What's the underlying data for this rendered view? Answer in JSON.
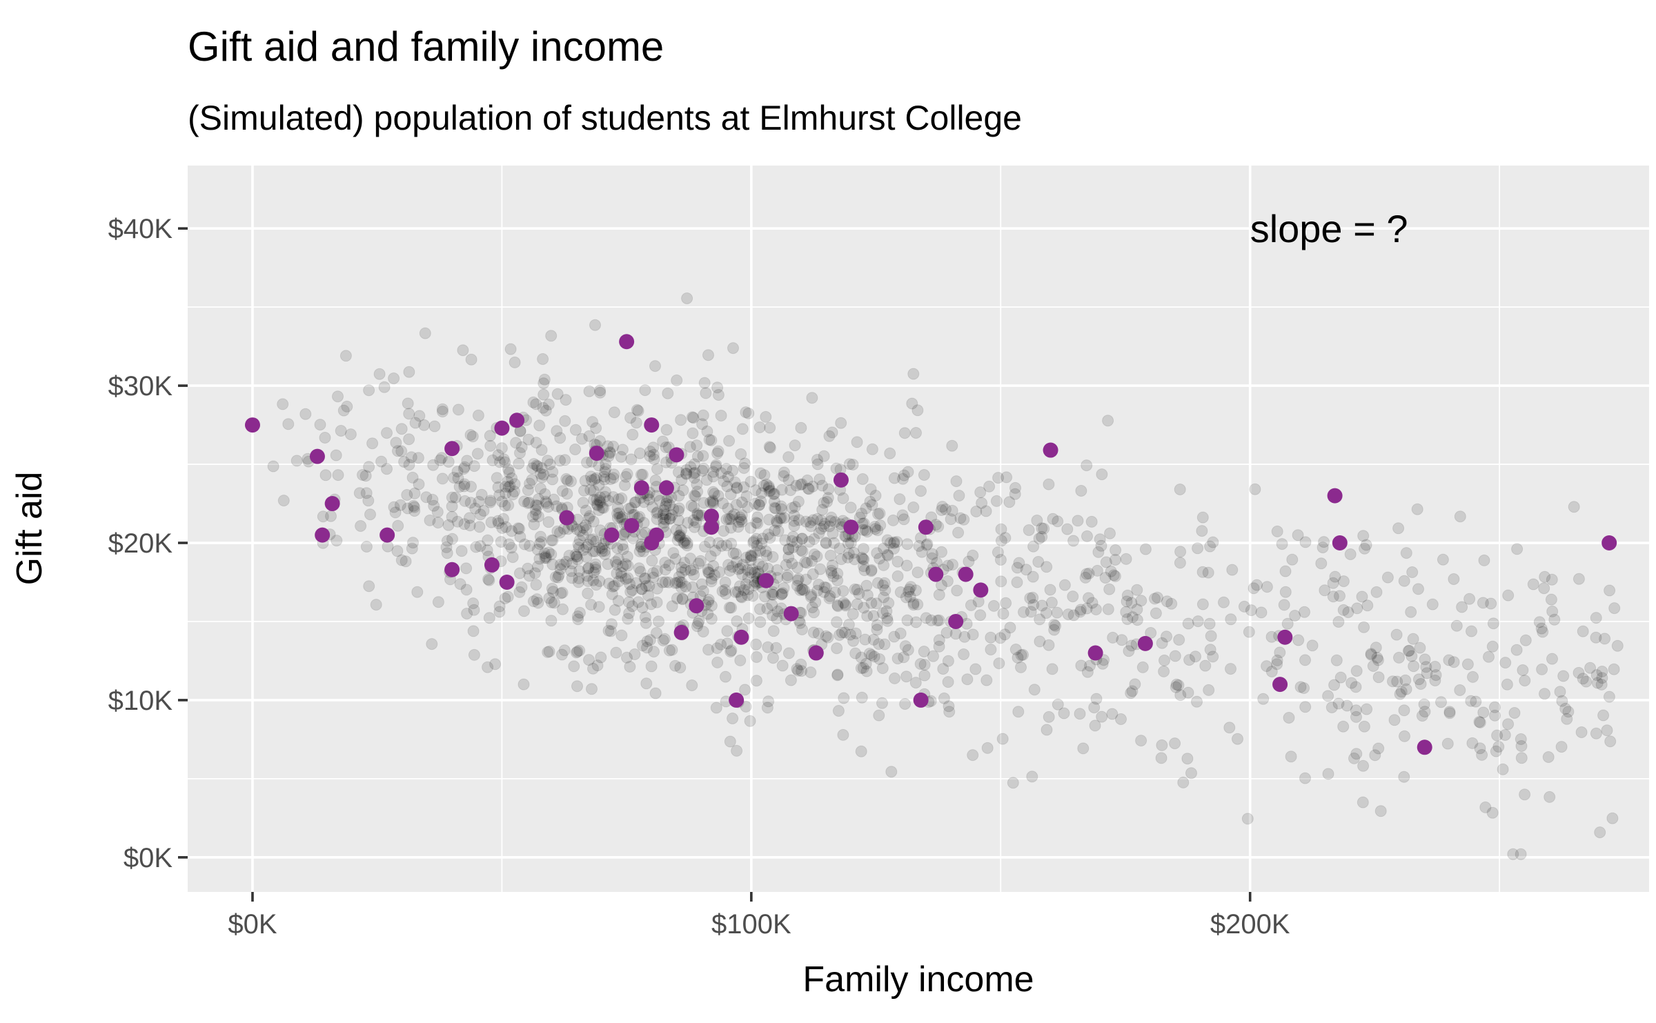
{
  "chart_data": {
    "type": "scatter",
    "title": "Gift aid and family income",
    "subtitle": "(Simulated) population of students at Elmhurst College",
    "xlabel": "Family income",
    "ylabel": "Gift aid",
    "xlim": [
      -13000,
      280000
    ],
    "ylim": [
      -2200,
      44000
    ],
    "x_ticks": [
      {
        "value": 0,
        "label": "$0K"
      },
      {
        "value": 100000,
        "label": "$100K"
      },
      {
        "value": 200000,
        "label": "$200K"
      }
    ],
    "y_ticks": [
      {
        "value": 0,
        "label": "$0K"
      },
      {
        "value": 10000,
        "label": "$10K"
      },
      {
        "value": 20000,
        "label": "$20K"
      },
      {
        "value": 30000,
        "label": "$30K"
      },
      {
        "value": 40000,
        "label": "$40K"
      }
    ],
    "x_minor_gridlines": [
      50000,
      150000,
      250000
    ],
    "y_minor_gridlines": [
      5000,
      15000,
      25000,
      35000
    ],
    "grid": true,
    "annotation": {
      "text": "slope = ?",
      "x": 200000,
      "y": 40000
    },
    "colors": {
      "panel": "#ebebeb",
      "grid": "#ffffff",
      "population": "#000000",
      "sample": "#8b2a8e"
    },
    "population": {
      "n": 1800,
      "description_of_distribution": "gray translucent points, income 0-275K, gift aid 0-42K, negative trend",
      "seed": 7
    },
    "series": [
      {
        "name": "",
        "x": [
          0,
          13000,
          16000,
          14000,
          27000,
          40000,
          40000,
          48000,
          51000,
          50000,
          53000,
          63000,
          69000,
          72000,
          75000,
          76000,
          78000,
          80000,
          80000,
          81000,
          83000,
          85000,
          86000,
          89000,
          92000,
          92000,
          98000,
          97000,
          103000,
          108000,
          113000,
          118000,
          120000,
          135000,
          134000,
          137000,
          141000,
          143000,
          146000,
          160000,
          169000,
          179000,
          206000,
          207000,
          217000,
          218000,
          235000,
          272000
        ],
        "y": [
          27500,
          25500,
          22500,
          20500,
          20500,
          26000,
          18300,
          18600,
          17500,
          27300,
          27800,
          21600,
          25700,
          20500,
          32800,
          21100,
          23500,
          27500,
          20000,
          20500,
          23500,
          25600,
          14300,
          16000,
          21000,
          21700,
          14000,
          10000,
          17600,
          15500,
          13000,
          24000,
          21000,
          21000,
          10000,
          18000,
          15000,
          18000,
          17000,
          25900,
          13000,
          13600,
          11000,
          14000,
          23000,
          20000,
          7000,
          20000
        ]
      }
    ]
  }
}
